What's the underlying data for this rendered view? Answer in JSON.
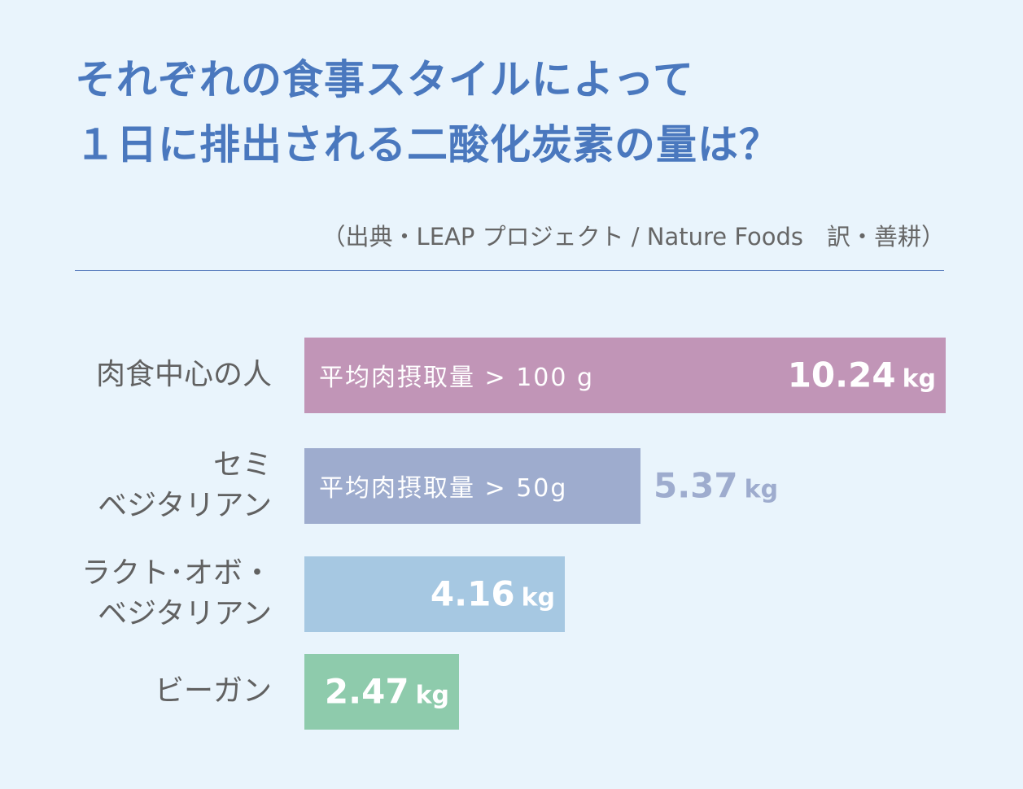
{
  "title_lines": [
    "それぞれの食事スタイルによって",
    "１日に排出される二酸化炭素の量は？"
  ],
  "source": "（出典・LEAP プロジェクト / Nature Foods　訳・善耕）",
  "colors": {
    "background": "#e9f4fc",
    "title": "#4a78be",
    "label": "#616161"
  },
  "chart_data": {
    "type": "bar",
    "orientation": "horizontal",
    "unit": "kg",
    "xlim": [
      0,
      10.24
    ],
    "categories": [
      "肉食中心の人",
      "セミベジタリアン",
      "ラクト･オボ・ベジタリアン",
      "ビーガン"
    ],
    "values": [
      10.24,
      5.37,
      4.16,
      2.47
    ],
    "bars": [
      {
        "label_lines": [
          "肉食中心の人"
        ],
        "value": 10.24,
        "value_text": "10.24",
        "unit": "kg",
        "note": "平均肉摂取量 > 100 g",
        "color": "#c195b7",
        "value_color": "#ffffff",
        "value_position": "inside-right"
      },
      {
        "label_lines": [
          "セミ",
          "ベジタリアン"
        ],
        "value": 5.37,
        "value_text": "5.37",
        "unit": "kg",
        "note": "平均肉摂取量 > 50g",
        "color": "#9eacce",
        "value_color": "#9eacce",
        "value_position": "outside"
      },
      {
        "label_lines": [
          "ラクト･オボ・",
          "ベジタリアン"
        ],
        "value": 4.16,
        "value_text": "4.16",
        "unit": "kg",
        "note": "",
        "color": "#a6c8e2",
        "value_color": "#ffffff",
        "value_position": "inside-right"
      },
      {
        "label_lines": [
          "ビーガン"
        ],
        "value": 2.47,
        "value_text": "2.47",
        "unit": "kg",
        "note": "",
        "color": "#8ecbac",
        "value_color": "#ffffff",
        "value_position": "inside-right"
      }
    ]
  }
}
